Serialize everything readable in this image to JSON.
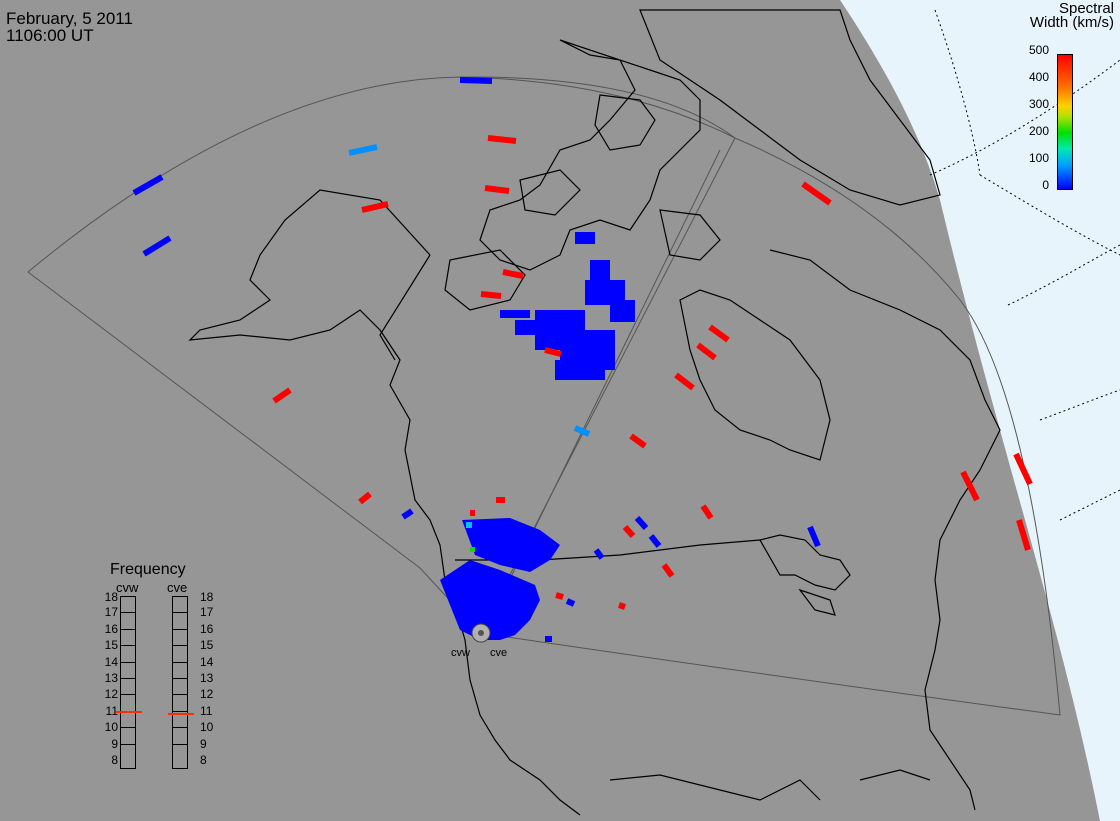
{
  "header": {
    "date": "February, 5 2011",
    "time": "1106:00 UT"
  },
  "colorbar": {
    "title_line1": "Spectral",
    "title_line2": "Width (km/s)",
    "ticks": [
      "500",
      "400",
      "300",
      "200",
      "100",
      "0"
    ]
  },
  "frequency": {
    "title": "Frequency",
    "radar_west": "cvw",
    "radar_east": "cve",
    "labels": [
      "18",
      "17",
      "16",
      "15",
      "14",
      "13",
      "12",
      "11",
      "10",
      "9",
      "8"
    ],
    "cvw_mhz": 10.9,
    "cve_mhz": 10.8
  },
  "radars": {
    "west_label": "cvw",
    "east_label": "cve"
  },
  "colors": {
    "background": "#969696",
    "daylight": "#e8f4fb",
    "scatter_blue": "#0000ff",
    "scatter_red": "#ff0000",
    "scatter_cyan": "#0090ff",
    "frequency_marker": "#ff3000"
  }
}
